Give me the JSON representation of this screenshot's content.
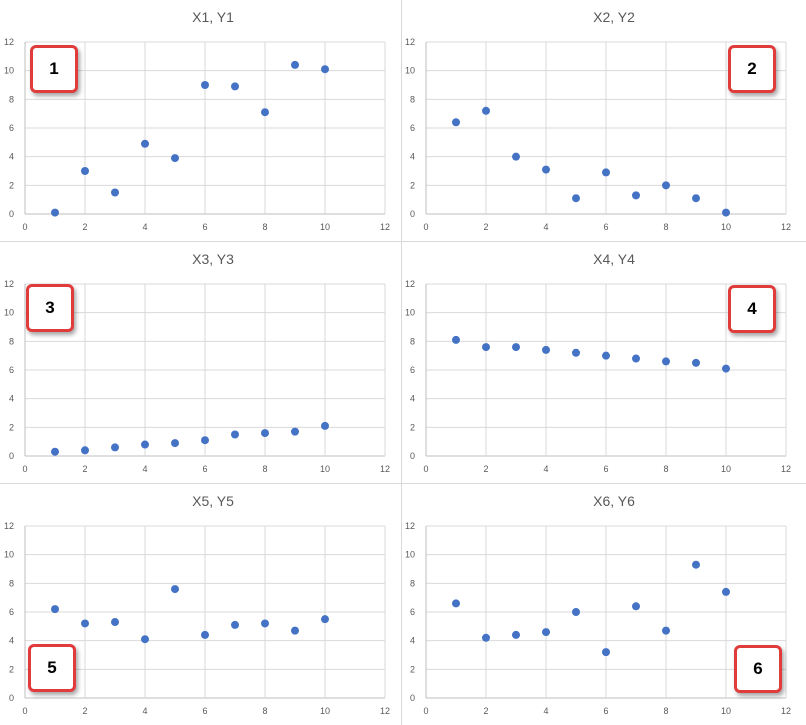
{
  "chart_data": [
    {
      "type": "scatter",
      "title": "X1, Y1",
      "badge": "1",
      "x": [
        1,
        2,
        3,
        4,
        5,
        6,
        7,
        8,
        9,
        10
      ],
      "y": [
        0.1,
        3.0,
        1.5,
        4.9,
        3.9,
        9.0,
        8.9,
        7.1,
        10.4,
        10.1
      ],
      "xlim": [
        0,
        12
      ],
      "ylim": [
        0,
        12
      ],
      "xticks": [
        "0",
        "2",
        "4",
        "6",
        "8",
        "10",
        "12"
      ],
      "yticks": [
        "0",
        "2",
        "4",
        "6",
        "8",
        "10",
        "12"
      ],
      "grid": true,
      "color": "#4472c4"
    },
    {
      "type": "scatter",
      "title": "X2, Y2",
      "badge": "2",
      "x": [
        1,
        2,
        3,
        4,
        5,
        6,
        7,
        8,
        9,
        10
      ],
      "y": [
        6.4,
        7.2,
        4.0,
        3.1,
        1.1,
        2.9,
        1.3,
        2.0,
        1.1,
        0.1
      ],
      "xlim": [
        0,
        12
      ],
      "ylim": [
        0,
        12
      ],
      "xticks": [
        "0",
        "2",
        "4",
        "6",
        "8",
        "10",
        "12"
      ],
      "yticks": [
        "0",
        "2",
        "4",
        "6",
        "8",
        "10",
        "12"
      ],
      "grid": true,
      "color": "#4472c4"
    },
    {
      "type": "scatter",
      "title": "X3, Y3",
      "badge": "3",
      "x": [
        1,
        2,
        3,
        4,
        5,
        6,
        7,
        8,
        9,
        10
      ],
      "y": [
        0.3,
        0.4,
        0.6,
        0.8,
        0.9,
        1.1,
        1.5,
        1.6,
        1.7,
        2.1
      ],
      "xlim": [
        0,
        12
      ],
      "ylim": [
        0,
        12
      ],
      "xticks": [
        "0",
        "2",
        "4",
        "6",
        "8",
        "10",
        "12"
      ],
      "yticks": [
        "0",
        "2",
        "4",
        "6",
        "8",
        "10",
        "12"
      ],
      "grid": true,
      "color": "#4472c4"
    },
    {
      "type": "scatter",
      "title": "X4, Y4",
      "badge": "4",
      "x": [
        1,
        2,
        3,
        4,
        5,
        6,
        7,
        8,
        9,
        10
      ],
      "y": [
        8.1,
        7.6,
        7.6,
        7.4,
        7.2,
        7.0,
        6.8,
        6.6,
        6.5,
        6.1
      ],
      "xlim": [
        0,
        12
      ],
      "ylim": [
        0,
        12
      ],
      "xticks": [
        "0",
        "2",
        "4",
        "6",
        "8",
        "10",
        "12"
      ],
      "yticks": [
        "0",
        "2",
        "4",
        "6",
        "8",
        "10",
        "12"
      ],
      "grid": true,
      "color": "#4472c4"
    },
    {
      "type": "scatter",
      "title": "X5, Y5",
      "badge": "5",
      "x": [
        1,
        2,
        3,
        4,
        5,
        6,
        7,
        8,
        9,
        10
      ],
      "y": [
        6.2,
        5.2,
        5.3,
        4.1,
        7.6,
        4.4,
        5.1,
        5.2,
        4.7,
        5.5
      ],
      "xlim": [
        0,
        12
      ],
      "ylim": [
        0,
        12
      ],
      "xticks": [
        "0",
        "2",
        "4",
        "6",
        "8",
        "10",
        "12"
      ],
      "yticks": [
        "0",
        "2",
        "4",
        "6",
        "8",
        "10",
        "12"
      ],
      "grid": true,
      "color": "#4472c4"
    },
    {
      "type": "scatter",
      "title": "X6, Y6",
      "badge": "6",
      "x": [
        1,
        2,
        3,
        4,
        5,
        6,
        7,
        8,
        9,
        10
      ],
      "y": [
        6.6,
        4.2,
        4.4,
        4.6,
        6.0,
        3.2,
        6.4,
        4.7,
        9.3,
        7.4
      ],
      "xlim": [
        0,
        12
      ],
      "ylim": [
        0,
        12
      ],
      "xticks": [
        "0",
        "2",
        "4",
        "6",
        "8",
        "10",
        "12"
      ],
      "yticks": [
        "0",
        "2",
        "4",
        "6",
        "8",
        "10",
        "12"
      ],
      "grid": true,
      "color": "#4472c4"
    }
  ]
}
